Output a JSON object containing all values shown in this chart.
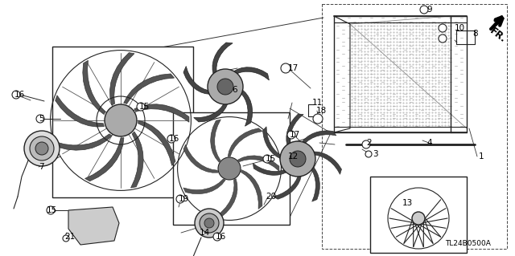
{
  "background_color": "#ffffff",
  "diagram_code": "TL24B0500A",
  "fr_label": "FR.",
  "figsize": [
    6.4,
    3.19
  ],
  "dpi": 100,
  "labels": [
    [
      "1",
      595,
      195
    ],
    [
      "2",
      455,
      178
    ],
    [
      "3",
      463,
      192
    ],
    [
      "4",
      530,
      178
    ],
    [
      "5",
      48,
      148
    ],
    [
      "6",
      288,
      112
    ],
    [
      "7",
      48,
      208
    ],
    [
      "8",
      587,
      42
    ],
    [
      "9",
      530,
      12
    ],
    [
      "10",
      565,
      35
    ],
    [
      "11",
      388,
      128
    ],
    [
      "12",
      358,
      195
    ],
    [
      "13",
      500,
      253
    ],
    [
      "14",
      248,
      290
    ],
    [
      "15",
      173,
      133
    ],
    [
      "15",
      330,
      198
    ],
    [
      "15",
      58,
      262
    ],
    [
      "16",
      18,
      118
    ],
    [
      "16",
      210,
      173
    ],
    [
      "16",
      268,
      295
    ],
    [
      "17",
      358,
      85
    ],
    [
      "17",
      360,
      168
    ],
    [
      "18",
      393,
      138
    ],
    [
      "19",
      222,
      248
    ],
    [
      "20",
      330,
      245
    ],
    [
      "21",
      80,
      295
    ]
  ],
  "line_color": "#222222",
  "line_width": 0.8
}
